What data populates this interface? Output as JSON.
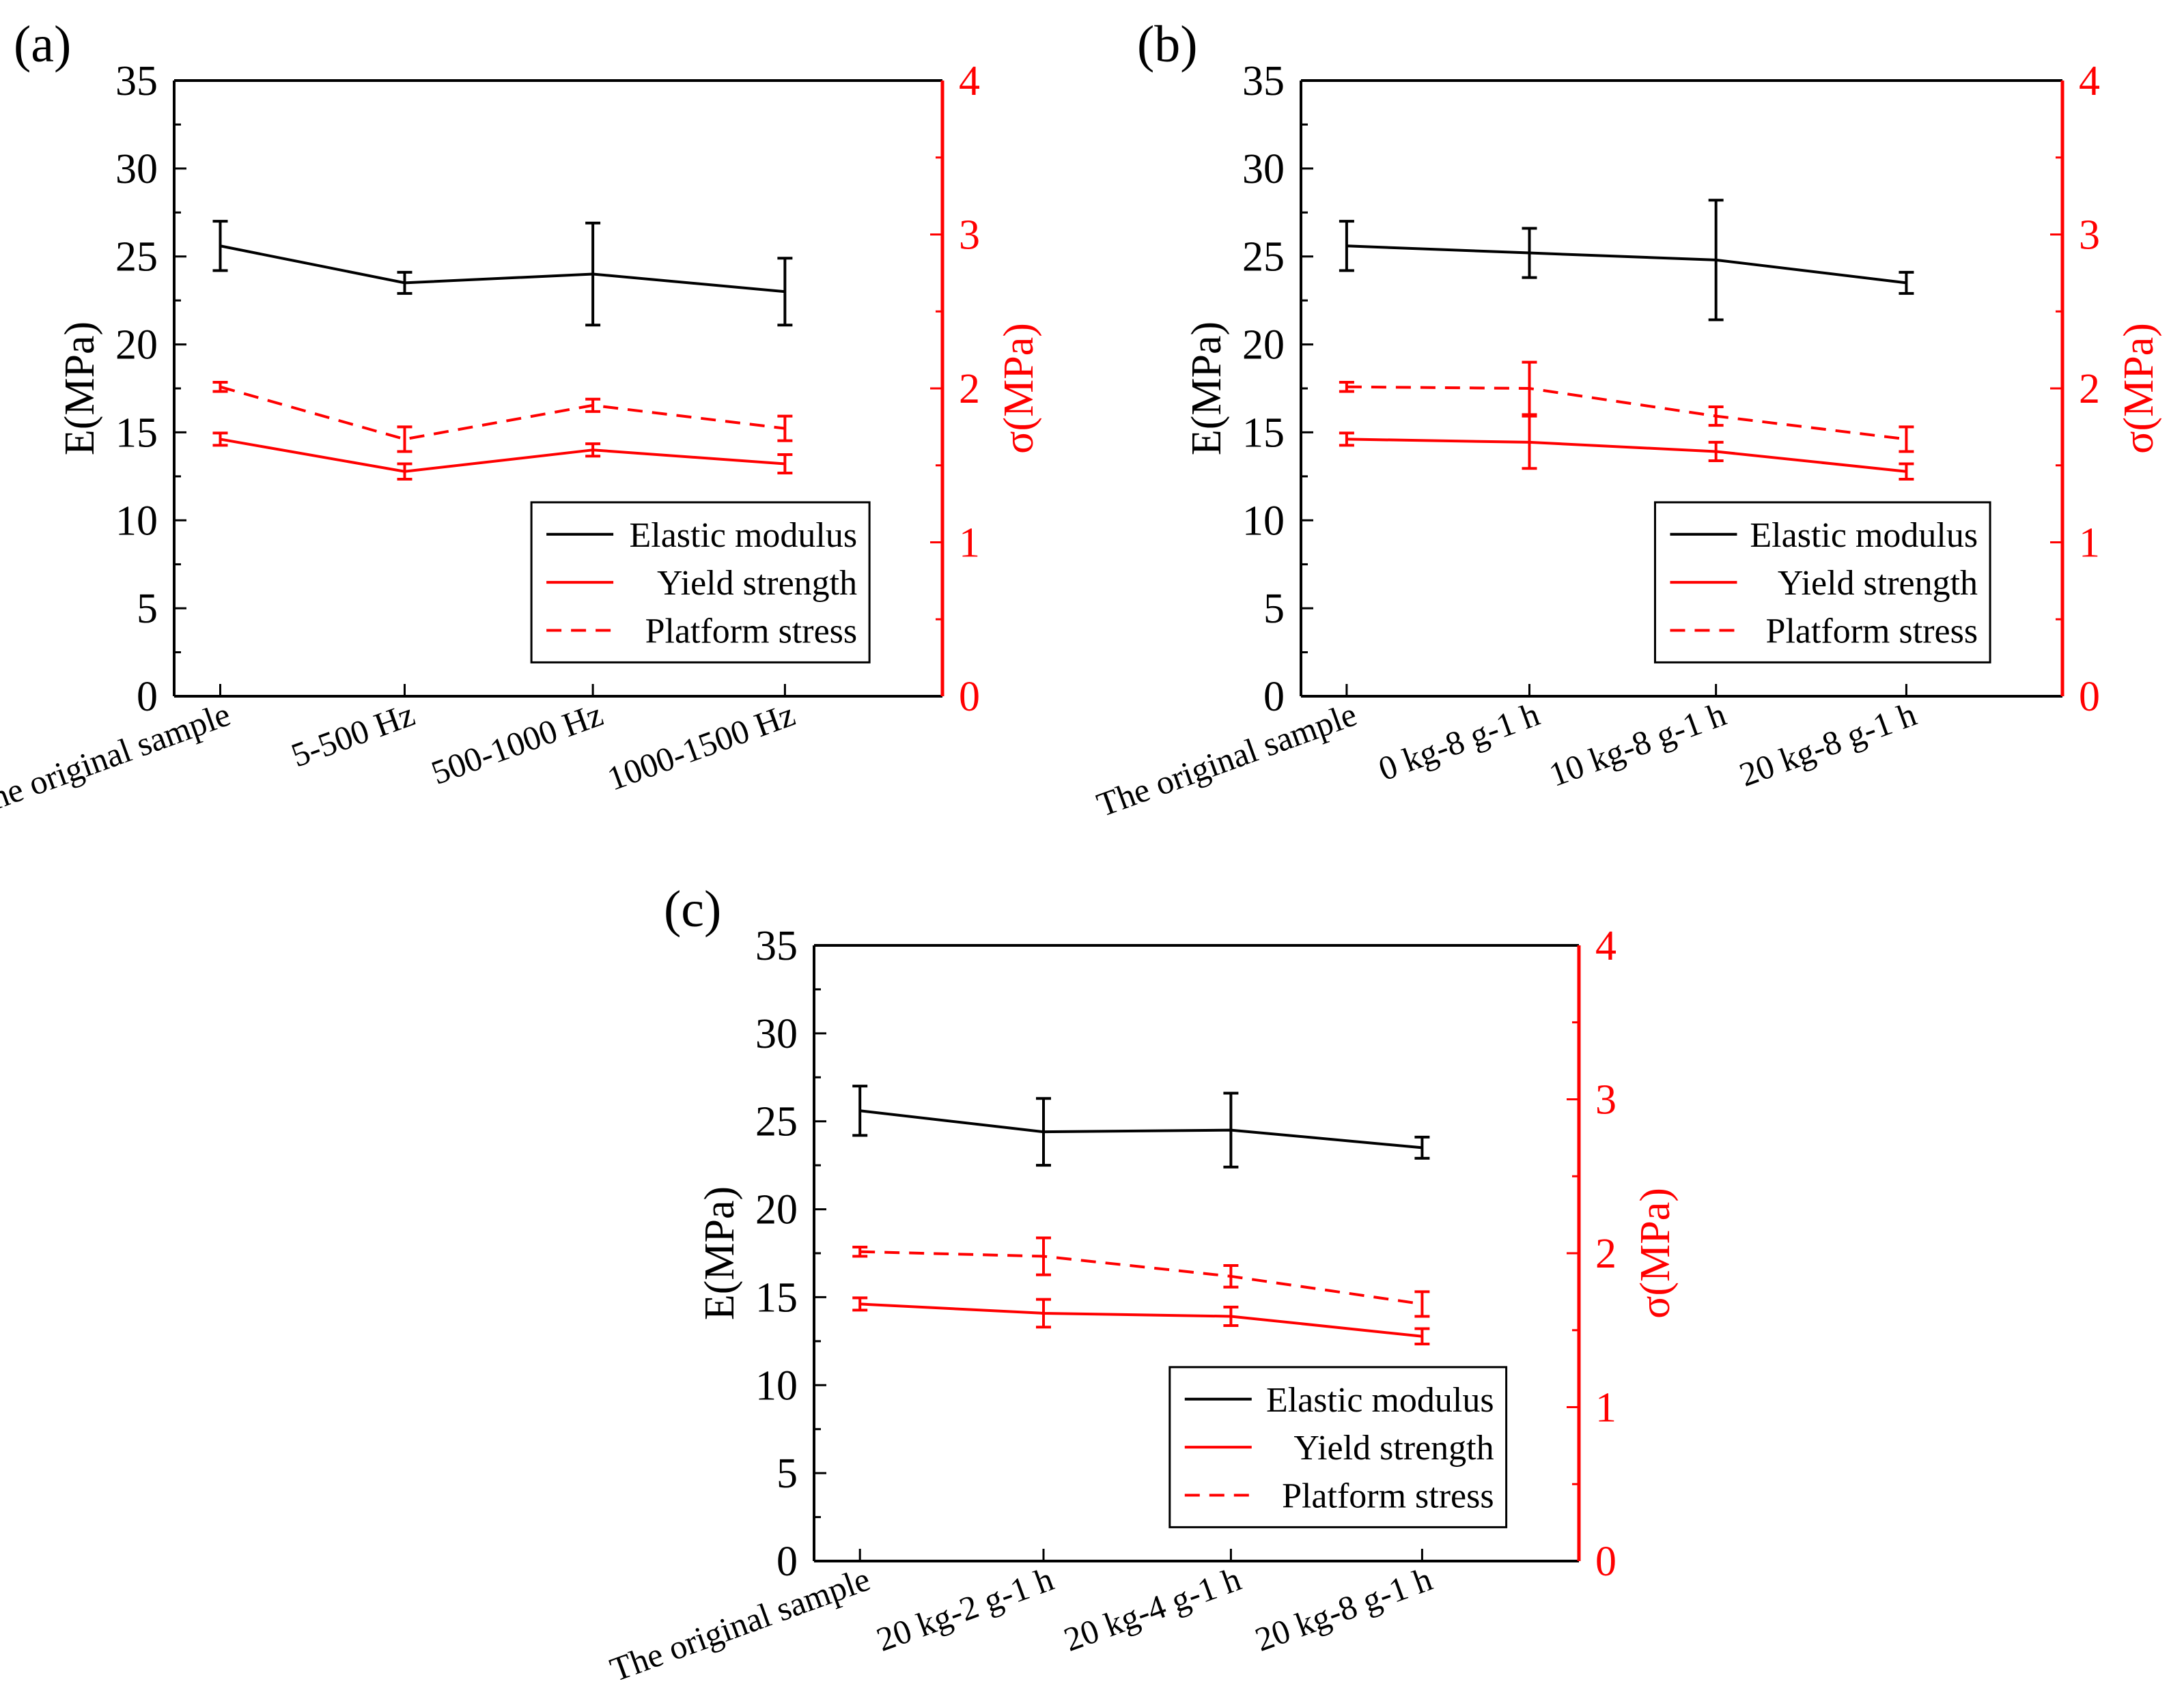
{
  "colors": {
    "left_axis": "#000000",
    "right_axis": "#ff0000",
    "elastic": "#000000",
    "yield": "#ff0000",
    "platform": "#ff0000"
  },
  "chart_data": [
    {
      "type": "line",
      "panel_label": "(a)",
      "categories": [
        "The original sample",
        "5-500 Hz",
        "500-1000 Hz",
        "1000-1500 Hz"
      ],
      "ylabel": "E(MPa)",
      "y2label": "σ(MPa)",
      "ylim": [
        0,
        35
      ],
      "y2lim": [
        0,
        4
      ],
      "yticks": [
        "0",
        "5",
        "10",
        "15",
        "20",
        "25",
        "30",
        "35"
      ],
      "y2ticks": [
        "0",
        "1",
        "2",
        "3",
        "4"
      ],
      "legend": {
        "position": "bottom-right",
        "entries": [
          "Elastic modulus",
          "Yield strength",
          "Platform stress"
        ]
      },
      "series": [
        {
          "name": "Elastic modulus",
          "axis": "left",
          "style": "solid",
          "color": "#000000",
          "values": [
            25.6,
            23.5,
            24.0,
            23.0
          ],
          "errors": [
            1.4,
            0.6,
            2.9,
            1.9
          ]
        },
        {
          "name": "Yield strength",
          "axis": "right",
          "style": "solid",
          "color": "#ff0000",
          "values": [
            1.67,
            1.46,
            1.6,
            1.51
          ],
          "errors": [
            0.04,
            0.05,
            0.04,
            0.06
          ]
        },
        {
          "name": "Platform stress",
          "axis": "right",
          "style": "dashed",
          "color": "#ff0000",
          "values": [
            2.01,
            1.67,
            1.89,
            1.74
          ],
          "errors": [
            0.03,
            0.08,
            0.04,
            0.08
          ]
        }
      ]
    },
    {
      "type": "line",
      "panel_label": "(b)",
      "categories": [
        "The original sample",
        "0 kg-8 g-1 h",
        "10 kg-8 g-1 h",
        "20 kg-8 g-1 h"
      ],
      "ylabel": "E(MPa)",
      "y2label": "σ(MPa)",
      "ylim": [
        0,
        35
      ],
      "y2lim": [
        0,
        4
      ],
      "yticks": [
        "0",
        "5",
        "10",
        "15",
        "20",
        "25",
        "30",
        "35"
      ],
      "y2ticks": [
        "0",
        "1",
        "2",
        "3",
        "4"
      ],
      "legend": {
        "position": "bottom-right",
        "entries": [
          "Elastic modulus",
          "Yield strength",
          "Platform stress"
        ]
      },
      "series": [
        {
          "name": "Elastic modulus",
          "axis": "left",
          "style": "solid",
          "color": "#000000",
          "values": [
            25.6,
            25.2,
            24.8,
            23.5
          ],
          "errors": [
            1.4,
            1.4,
            3.4,
            0.6
          ]
        },
        {
          "name": "Yield strength",
          "axis": "right",
          "style": "solid",
          "color": "#ff0000",
          "values": [
            1.67,
            1.65,
            1.59,
            1.46
          ],
          "errors": [
            0.04,
            0.17,
            0.06,
            0.05
          ]
        },
        {
          "name": "Platform stress",
          "axis": "right",
          "style": "dashed",
          "color": "#ff0000",
          "values": [
            2.01,
            2.0,
            1.82,
            1.67
          ],
          "errors": [
            0.03,
            0.17,
            0.06,
            0.08
          ]
        }
      ]
    },
    {
      "type": "line",
      "panel_label": "(c)",
      "categories": [
        "The original sample",
        "20 kg-2 g-1 h",
        "20 kg-4 g-1 h",
        "20 kg-8 g-1 h"
      ],
      "ylabel": "E(MPa)",
      "y2label": "σ(MPa)",
      "ylim": [
        0,
        35
      ],
      "y2lim": [
        0,
        4
      ],
      "yticks": [
        "0",
        "5",
        "10",
        "15",
        "20",
        "25",
        "30",
        "35"
      ],
      "y2ticks": [
        "0",
        "1",
        "2",
        "3",
        "4"
      ],
      "legend": {
        "position": "bottom-right",
        "entries": [
          "Elastic modulus",
          "Yield strength",
          "Platform stress"
        ]
      },
      "series": [
        {
          "name": "Elastic modulus",
          "axis": "left",
          "style": "solid",
          "color": "#000000",
          "values": [
            25.6,
            24.4,
            24.5,
            23.5
          ],
          "errors": [
            1.4,
            1.9,
            2.1,
            0.6
          ]
        },
        {
          "name": "Yield strength",
          "axis": "right",
          "style": "solid",
          "color": "#ff0000",
          "values": [
            1.67,
            1.61,
            1.59,
            1.46
          ],
          "errors": [
            0.04,
            0.09,
            0.06,
            0.05
          ]
        },
        {
          "name": "Platform stress",
          "axis": "right",
          "style": "dashed",
          "color": "#ff0000",
          "values": [
            2.01,
            1.98,
            1.85,
            1.67
          ],
          "errors": [
            0.03,
            0.12,
            0.07,
            0.08
          ]
        }
      ]
    }
  ]
}
